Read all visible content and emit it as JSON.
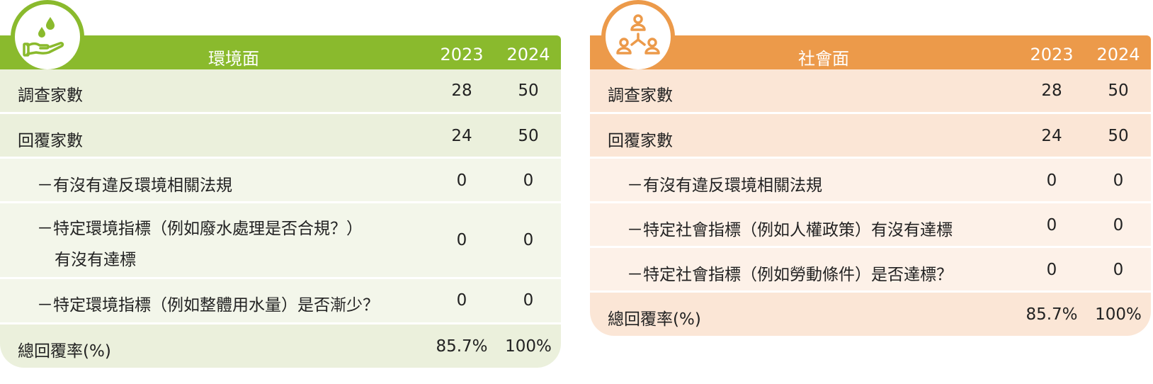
{
  "environment": {
    "title": "環境面",
    "year1": "2023",
    "year2": "2024",
    "icon": "water-hand-icon",
    "accent": "#8aba2d",
    "rows": [
      {
        "label": "調查家數",
        "v1": "28",
        "v2": "50"
      },
      {
        "label": "回覆家數",
        "v1": "24",
        "v2": "50"
      },
      {
        "label": "－有沒有違反環境相關法規",
        "v1": "0",
        "v2": "0"
      },
      {
        "label": "－特定環境指標（例如廢水處理是否合規？）",
        "label2": "有沒有達標",
        "v1": "0",
        "v2": "0"
      },
      {
        "label": "－特定環境指標（例如整體用水量）是否漸少？",
        "v1": "0",
        "v2": "0"
      },
      {
        "label": "總回覆率(%)",
        "v1": "85.7%",
        "v2": "100%"
      }
    ]
  },
  "social": {
    "title": "社會面",
    "year1": "2023",
    "year2": "2024",
    "icon": "people-network-icon",
    "accent": "#ec9a4a",
    "rows": [
      {
        "label": "調查家數",
        "v1": "28",
        "v2": "50"
      },
      {
        "label": "回覆家數",
        "v1": "24",
        "v2": "50"
      },
      {
        "label": "－有沒有違反環境相關法規",
        "v1": "0",
        "v2": "0"
      },
      {
        "label": "－特定社會指標（例如人權政策）有沒有達標",
        "v1": "0",
        "v2": "0"
      },
      {
        "label": "－特定社會指標（例如勞動條件）是否達標？",
        "v1": "0",
        "v2": "0"
      },
      {
        "label": "總回覆率(%)",
        "v1": "85.7%",
        "v2": "100%"
      }
    ]
  }
}
